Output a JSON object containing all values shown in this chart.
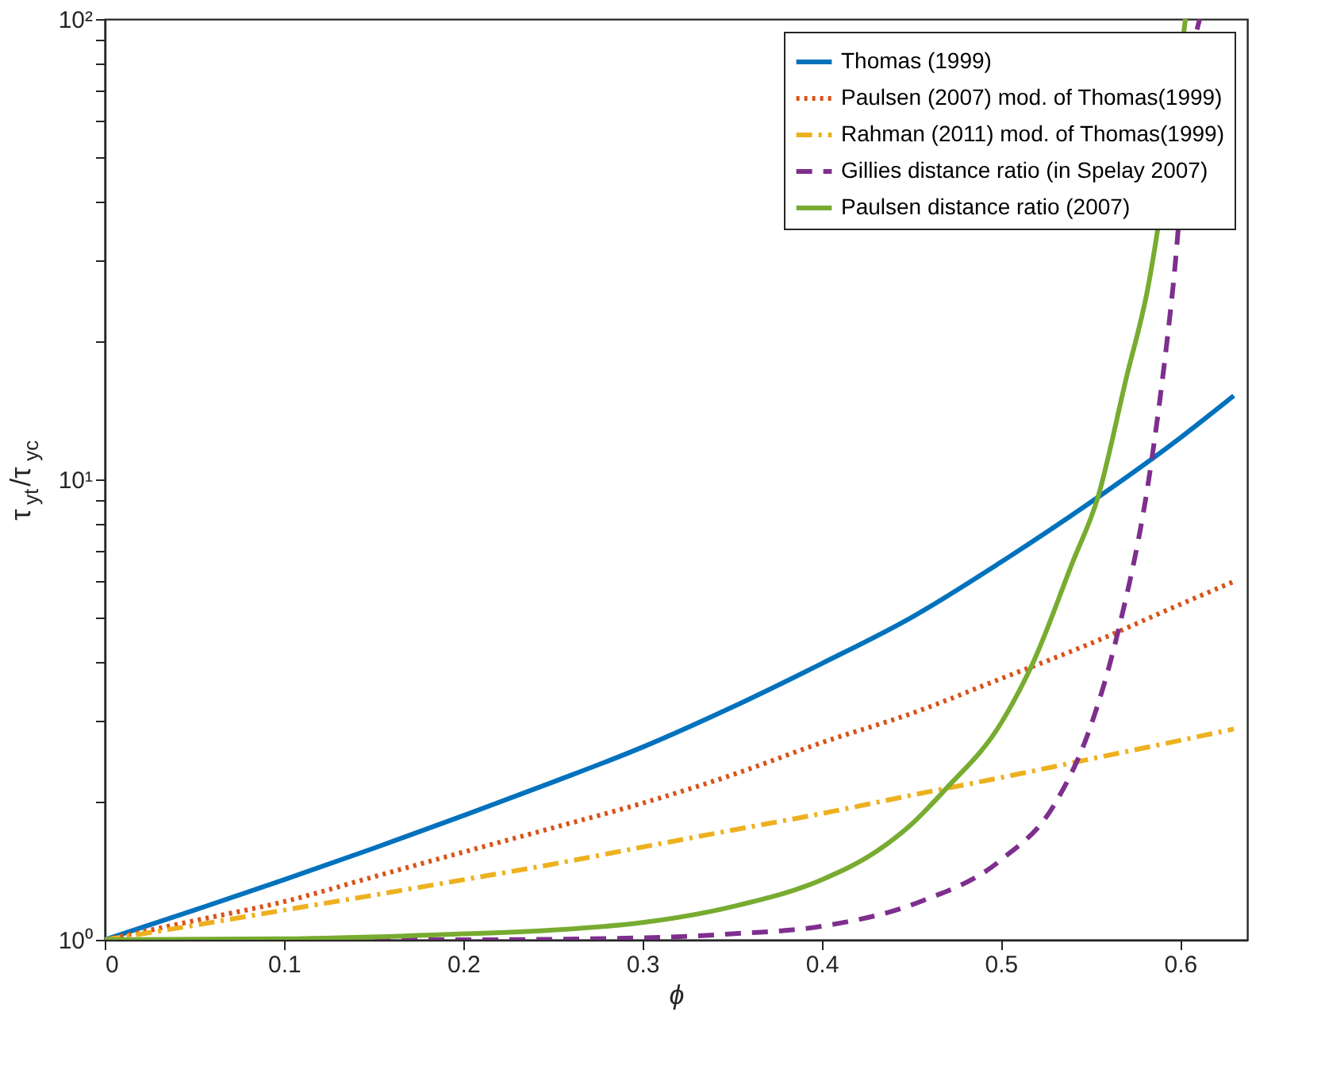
{
  "chart_data": {
    "type": "line",
    "xlabel": "ϕ",
    "ylabel": "τ$_{yt}$/τ$_{yc}$",
    "xlim": [
      0,
      0.6375
    ],
    "xticks": [
      0,
      0.1,
      0.2,
      0.3,
      0.4,
      0.5,
      0.6
    ],
    "ylim": [
      1,
      100
    ],
    "log": "y",
    "yticks": [
      {
        "value": 1,
        "label": "10⁰"
      },
      {
        "value": 2,
        "label": null
      },
      {
        "value": 3,
        "label": null
      },
      {
        "value": 4,
        "label": null
      },
      {
        "value": 5,
        "label": null
      },
      {
        "value": 6,
        "label": null
      },
      {
        "value": 7,
        "label": null
      },
      {
        "value": 8,
        "label": null
      },
      {
        "value": 9,
        "label": null
      },
      {
        "value": 10,
        "label": "10¹"
      },
      {
        "value": 20,
        "label": null
      },
      {
        "value": 30,
        "label": null
      },
      {
        "value": 40,
        "label": null
      },
      {
        "value": 50,
        "label": null
      },
      {
        "value": 60,
        "label": null
      },
      {
        "value": 70,
        "label": null
      },
      {
        "value": 80,
        "label": null
      },
      {
        "value": 90,
        "label": null
      },
      {
        "value": 100,
        "label": "10²"
      }
    ],
    "grid": false,
    "legend": "top right",
    "marker": "none",
    "series": [
      {
        "name": "Thomas (1999)",
        "color": "#0072bd",
        "line_style": "solid",
        "x": [
          0,
          0.05,
          0.1,
          0.15,
          0.2,
          0.25,
          0.3,
          0.35,
          0.4,
          0.45,
          0.5,
          0.55,
          0.6,
          0.63
        ],
        "values": [
          1,
          1.16,
          1.35,
          1.58,
          1.86,
          2.2,
          2.62,
          3.2,
          3.98,
          5.01,
          6.61,
          8.91,
          12.3,
          15.2
        ]
      },
      {
        "name": "Paulsen (2007) mod. of Thomas(1999)",
        "color": "#d95319",
        "line_style": "dotted",
        "x": [
          0,
          0.05,
          0.1,
          0.15,
          0.2,
          0.25,
          0.3,
          0.35,
          0.4,
          0.45,
          0.5,
          0.55,
          0.6,
          0.63
        ],
        "values": [
          1,
          1.1,
          1.21,
          1.37,
          1.55,
          1.75,
          1.98,
          2.28,
          2.68,
          3.1,
          3.69,
          4.4,
          5.35,
          6.0
        ]
      },
      {
        "name": "Rahman (2011) mod. of Thomas(1999)",
        "color": "#edb120",
        "line_style": "dashdot",
        "x": [
          0,
          0.05,
          0.1,
          0.15,
          0.2,
          0.25,
          0.3,
          0.35,
          0.4,
          0.45,
          0.5,
          0.55,
          0.6,
          0.63
        ],
        "values": [
          1,
          1.075,
          1.16,
          1.25,
          1.35,
          1.46,
          1.59,
          1.73,
          1.88,
          2.06,
          2.25,
          2.47,
          2.71,
          2.87
        ]
      },
      {
        "name": "Gillies distance ratio (in Spelay 2007)",
        "color": "#7e2f8e",
        "line_style": "dashed",
        "x": [
          0,
          0.1,
          0.2,
          0.3,
          0.35,
          0.4,
          0.455,
          0.5,
          0.53,
          0.55,
          0.565,
          0.584,
          0.596,
          0.609,
          0.611
        ],
        "values": [
          1,
          1,
          1,
          1.01,
          1.03,
          1.07,
          1.21,
          1.49,
          1.97,
          2.9,
          4.6,
          10.9,
          26,
          93,
          100
        ]
      },
      {
        "name": "Paulsen distance ratio (2007)",
        "color": "#77ac30",
        "line_style": "solid",
        "x": [
          0,
          0.1,
          0.2,
          0.25,
          0.3,
          0.35,
          0.4,
          0.43,
          0.45,
          0.469,
          0.5,
          0.518,
          0.54,
          0.554,
          0.57,
          0.582,
          0.603
        ],
        "values": [
          1,
          1.005,
          1.03,
          1.05,
          1.09,
          1.18,
          1.35,
          1.55,
          1.78,
          2.12,
          2.95,
          4.0,
          6.6,
          9.1,
          16.6,
          26,
          100
        ]
      }
    ]
  }
}
